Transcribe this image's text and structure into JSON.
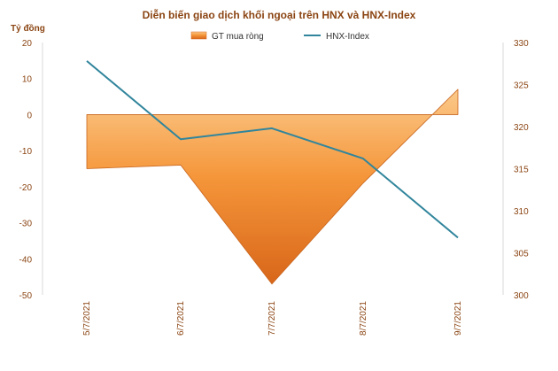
{
  "chart_data": {
    "type": "area+line",
    "title": "Diễn biến giao dịch khối ngoại trên HNX và HNX-Index",
    "y_left_unit": "Tỷ đồng",
    "categories": [
      "5/7/2021",
      "6/7/2021",
      "7/7/2021",
      "8/7/2021",
      "9/7/2021"
    ],
    "series": [
      {
        "name": "GT mua ròng",
        "type": "area",
        "axis": "left",
        "color": "#F0892A",
        "values": [
          -15,
          -14,
          -47,
          -19,
          7
        ]
      },
      {
        "name": "HNX-Index",
        "type": "line",
        "axis": "right",
        "color": "#31859C",
        "values": [
          327.8,
          318.5,
          319.8,
          316.2,
          306.8
        ]
      }
    ],
    "y_left": {
      "min": -50,
      "max": 20,
      "ticks": [
        20,
        10,
        0,
        -10,
        -20,
        -30,
        -40,
        -50
      ]
    },
    "y_right": {
      "min": 300,
      "max": 330,
      "ticks": [
        330,
        325,
        320,
        315,
        310,
        305,
        300
      ]
    },
    "legend_position": "top",
    "grid": false
  }
}
